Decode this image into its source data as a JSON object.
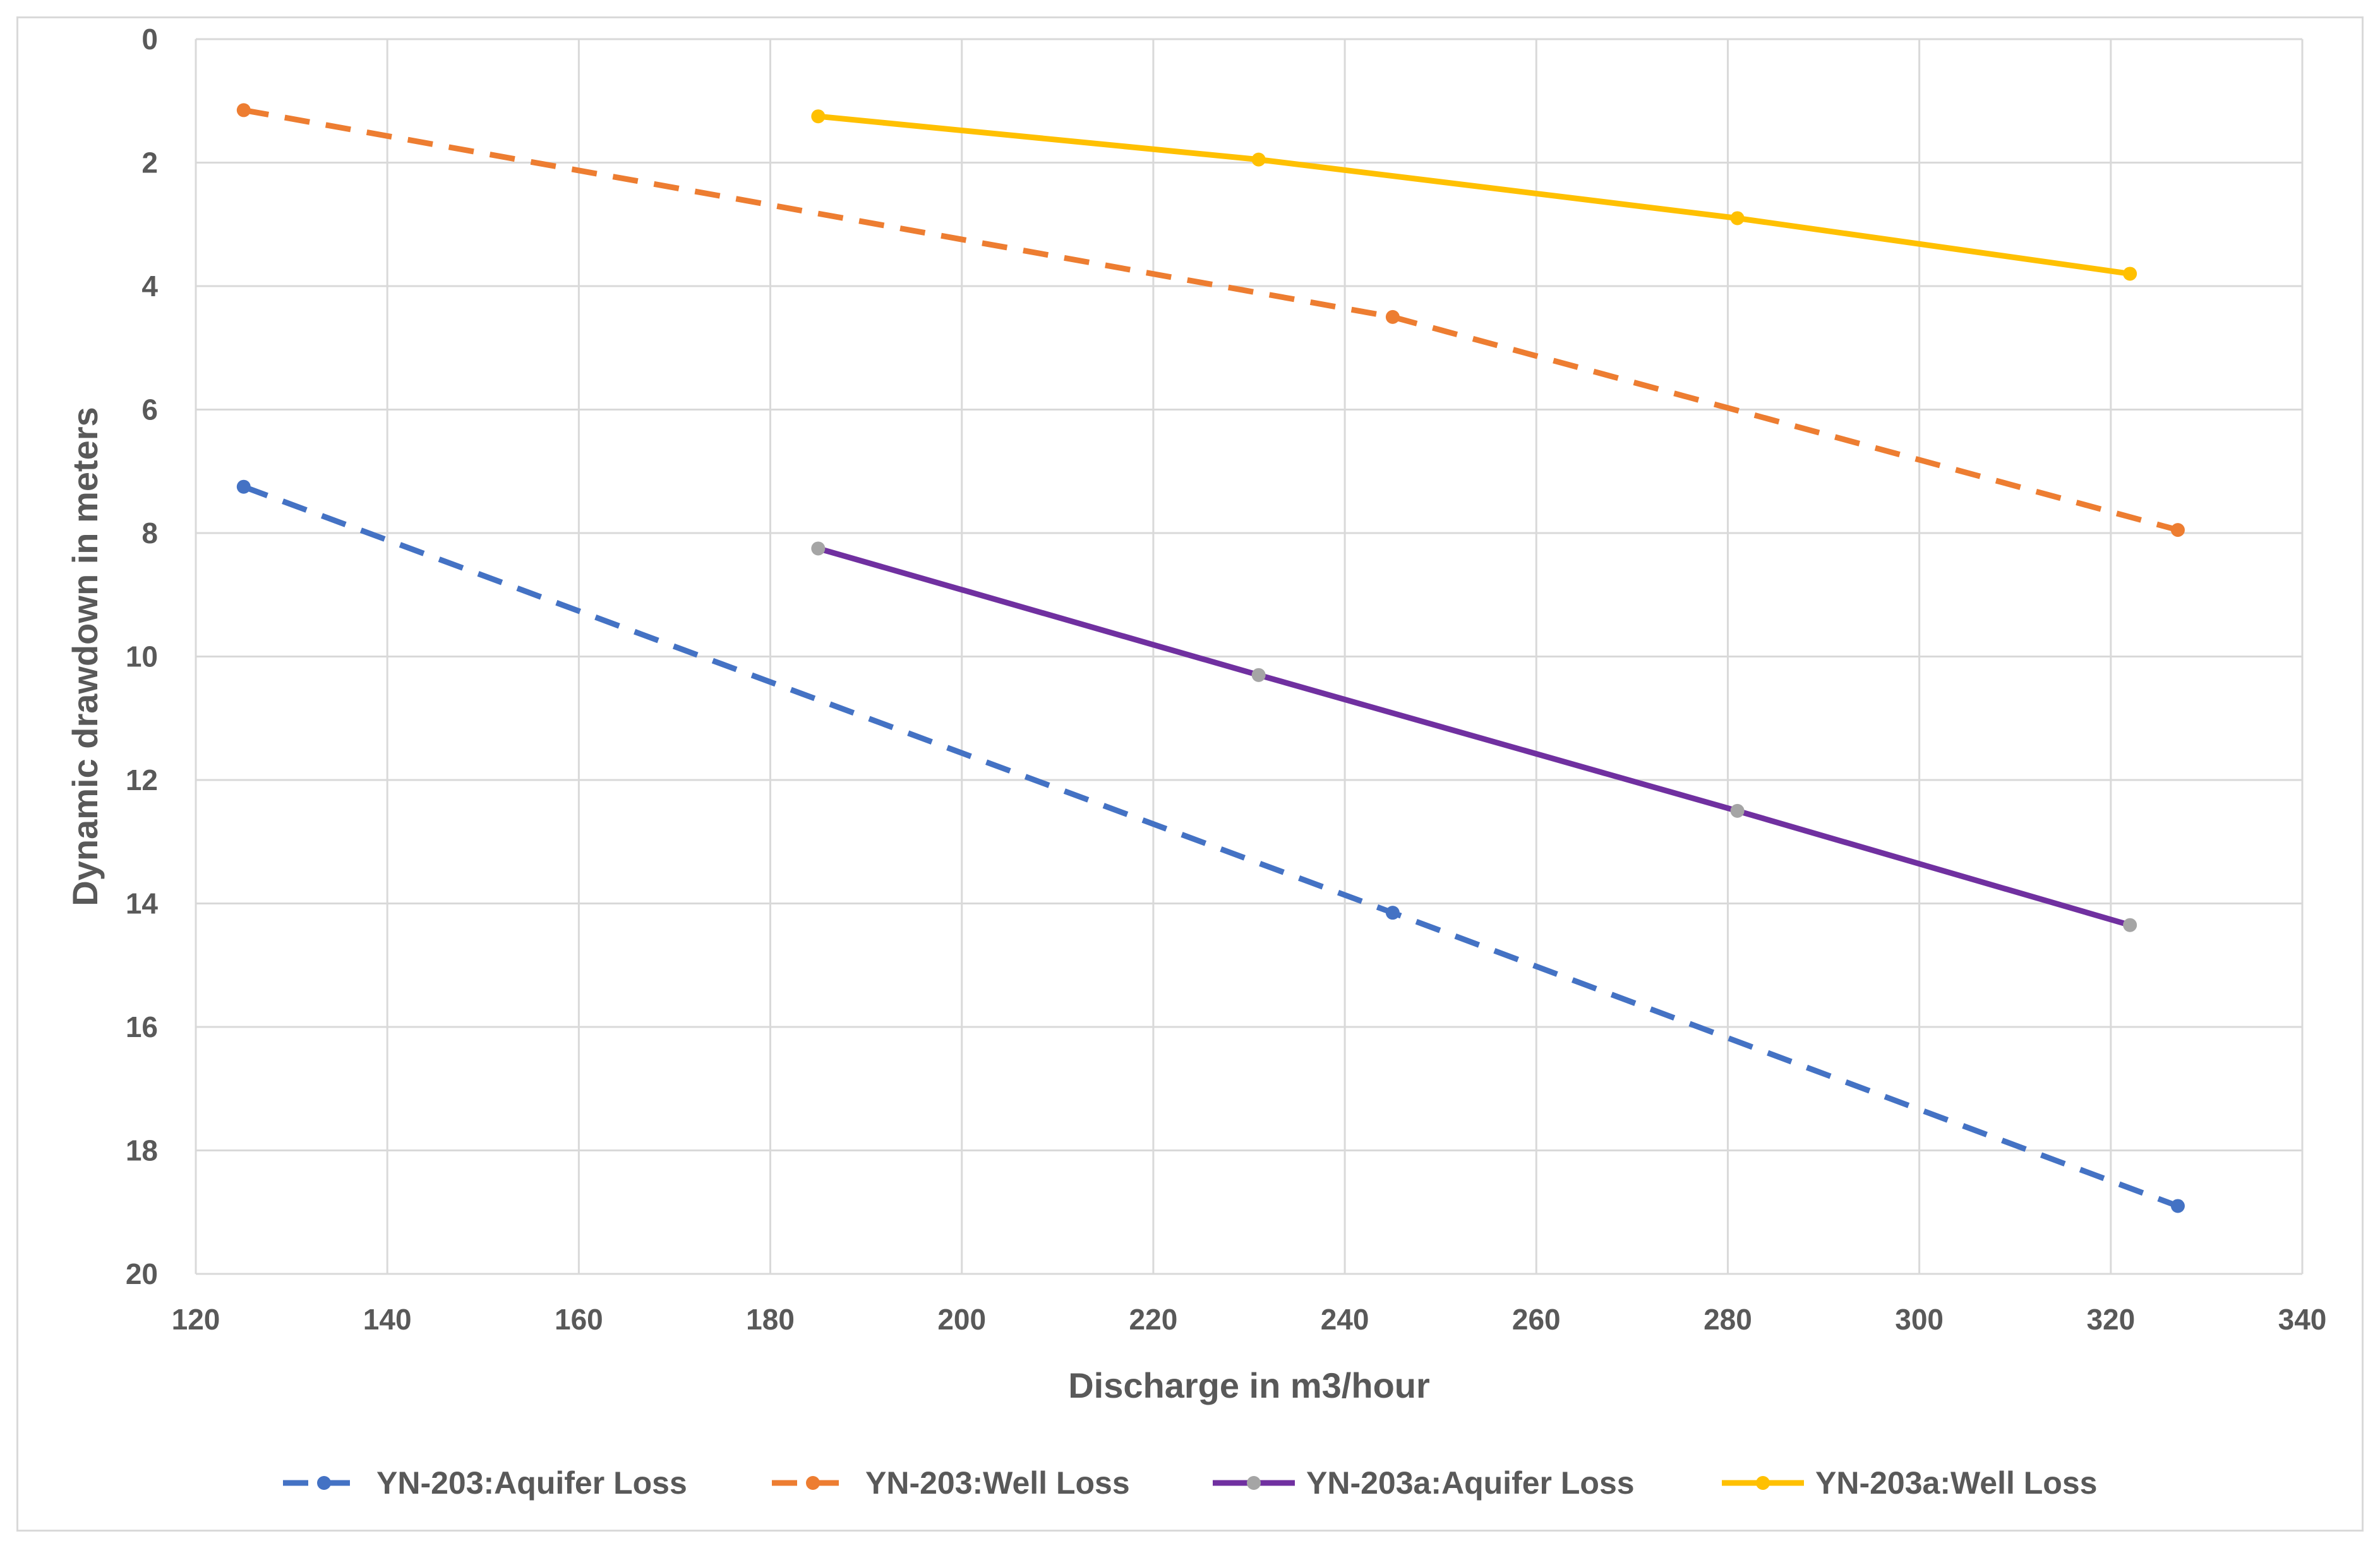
{
  "chart_data": {
    "type": "line",
    "title": "",
    "xlabel": "Discharge in m3/hour",
    "ylabel": "Dynamic drawdown in meters",
    "xlim": [
      120,
      340
    ],
    "ylim": [
      0,
      20
    ],
    "y_inverted": true,
    "x_ticks": [
      120,
      140,
      160,
      180,
      200,
      220,
      240,
      260,
      280,
      300,
      320,
      340
    ],
    "y_ticks": [
      0,
      2,
      4,
      6,
      8,
      10,
      12,
      14,
      16,
      18,
      20
    ],
    "grid": true,
    "legend_position": "bottom",
    "series": [
      {
        "name": "YN-203:Aquifer Loss",
        "color": "#4472C4",
        "marker_color": "#4472C4",
        "dash": "dashed",
        "x": [
          125,
          245,
          327
        ],
        "y": [
          7.25,
          14.15,
          18.9
        ]
      },
      {
        "name": "YN-203:Well Loss",
        "color": "#ED7D31",
        "marker_color": "#ED7D31",
        "dash": "dashed",
        "x": [
          125,
          245,
          327
        ],
        "y": [
          1.15,
          4.5,
          7.95
        ]
      },
      {
        "name": "YN-203a:Aquifer Loss",
        "color": "#7030A0",
        "marker_color": "#A5A5A5",
        "dash": "solid",
        "x": [
          185,
          231,
          281,
          322
        ],
        "y": [
          8.25,
          10.3,
          12.5,
          14.35
        ]
      },
      {
        "name": "YN-203a:Well Loss",
        "color": "#FFC000",
        "marker_color": "#FFC000",
        "dash": "solid",
        "x": [
          185,
          231,
          281,
          322
        ],
        "y": [
          1.25,
          1.95,
          2.9,
          3.8
        ]
      }
    ]
  }
}
